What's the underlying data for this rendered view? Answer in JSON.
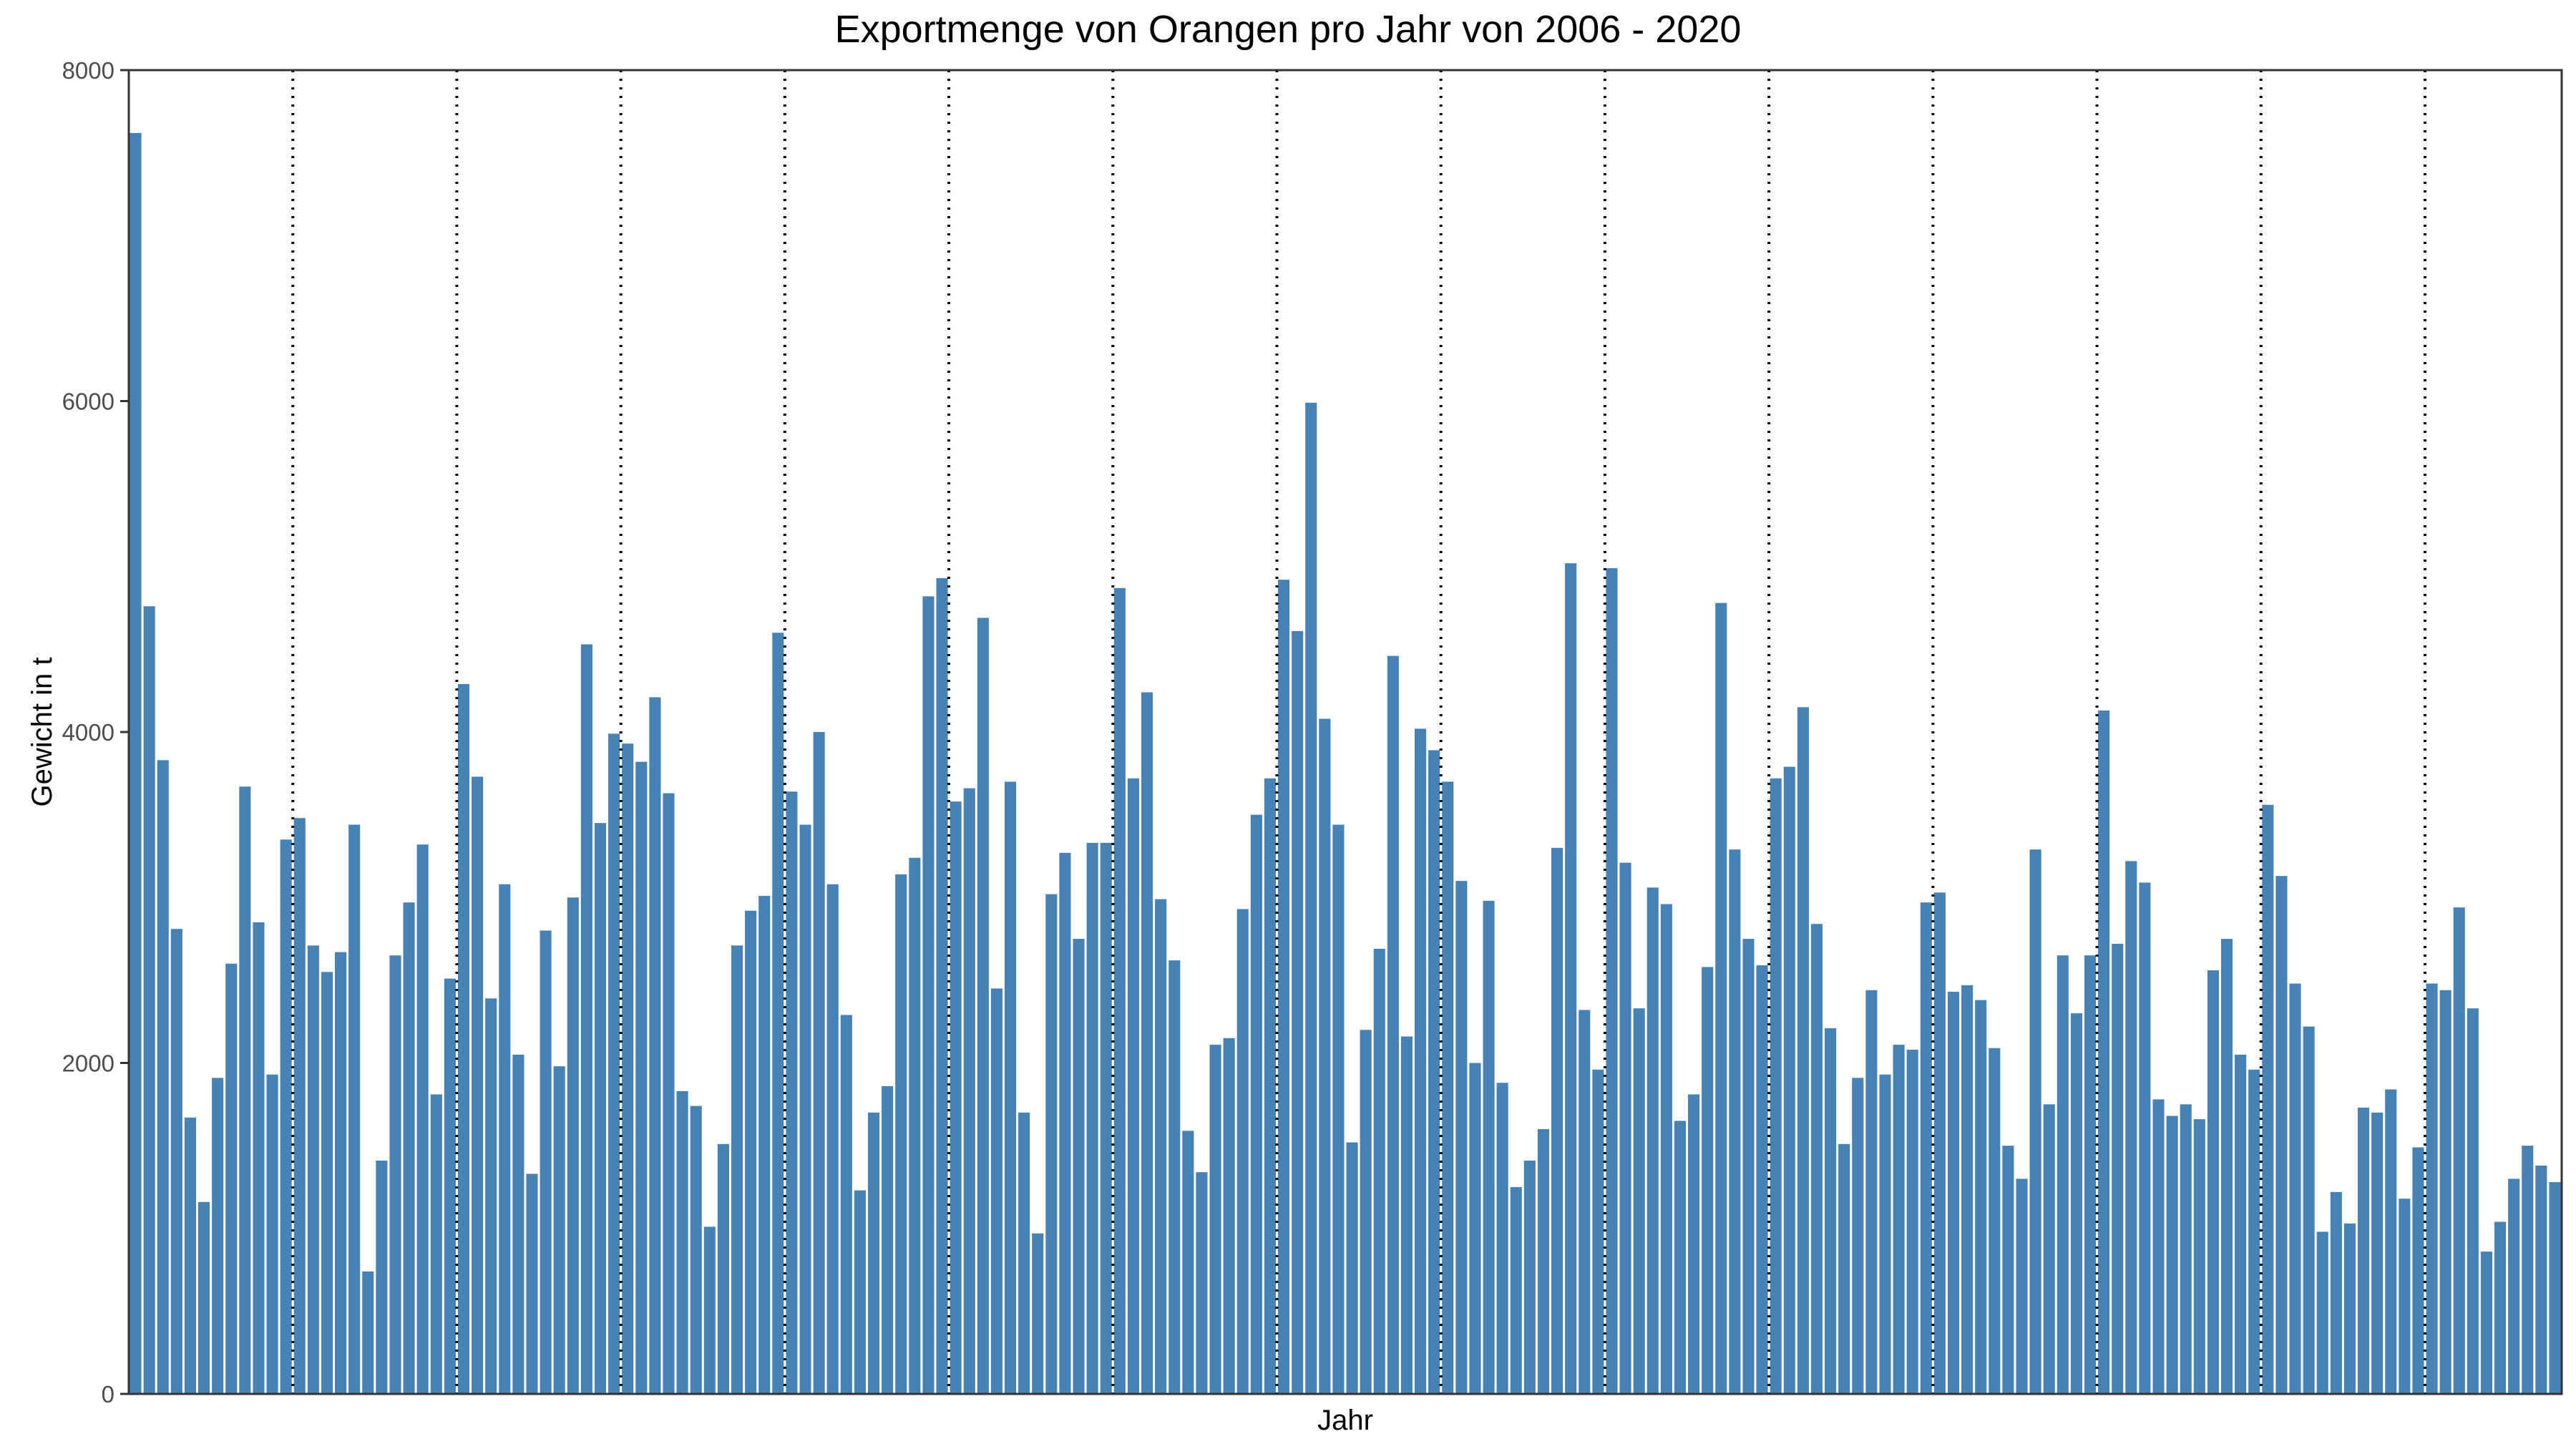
{
  "chart_data": {
    "type": "bar",
    "title": "Exportmenge von Orangen pro Jahr von 2006 - 2020",
    "xlabel": "Jahr",
    "ylabel": "Gewicht in t",
    "ylim": [
      0,
      8000
    ],
    "yticks": [
      "0",
      "2000",
      "4000",
      "6000",
      "8000"
    ],
    "grid": false,
    "bar_color": "#4682B4",
    "year_separator_style": "dotted",
    "months_per_year": 12,
    "values": [
      7620,
      4760,
      3830,
      2810,
      1670,
      1160,
      1910,
      2600,
      3670,
      2850,
      1930,
      3350,
      3480,
      2710,
      2550,
      2670,
      3440,
      740,
      1410,
      2650,
      2970,
      3320,
      1810,
      2510,
      4290,
      3730,
      2390,
      3080,
      2050,
      1330,
      2800,
      1980,
      3000,
      4530,
      3450,
      3990,
      3930,
      3820,
      4210,
      3630,
      1830,
      1740,
      1010,
      1510,
      2710,
      2920,
      3010,
      4600,
      3640,
      3440,
      4000,
      3080,
      2290,
      1230,
      1700,
      1860,
      3140,
      3240,
      4820,
      4930,
      3580,
      3660,
      4690,
      2450,
      3700,
      1700,
      970,
      3020,
      3270,
      2750,
      3330,
      3330,
      4870,
      3720,
      4240,
      2990,
      2620,
      1590,
      1340,
      2110,
      2150,
      2930,
      3500,
      3720,
      4920,
      4610,
      5990,
      4080,
      3440,
      1520,
      2200,
      2690,
      4460,
      2160,
      4020,
      3890,
      3700,
      3100,
      2000,
      2980,
      1880,
      1250,
      1410,
      1600,
      3300,
      5020,
      2320,
      1960,
      4990,
      3210,
      2330,
      3060,
      2960,
      1650,
      1810,
      2580,
      4780,
      3290,
      2750,
      2590,
      3720,
      3790,
      4150,
      2840,
      2210,
      1510,
      1910,
      2440,
      1930,
      2110,
      2080,
      2970,
      3030,
      2430,
      2470,
      2380,
      2090,
      1500,
      1300,
      3290,
      1750,
      2650,
      2300,
      2650,
      4130,
      2720,
      3220,
      3090,
      1780,
      1680,
      1750,
      1660,
      2560,
      2750,
      2050,
      1960,
      3560,
      3130,
      2480,
      2220,
      980,
      1220,
      1030,
      1730,
      1700,
      1840,
      1180,
      1490,
      2480,
      2440,
      2940,
      2330,
      860,
      1040,
      1300,
      1500,
      1380,
      1280
    ]
  }
}
